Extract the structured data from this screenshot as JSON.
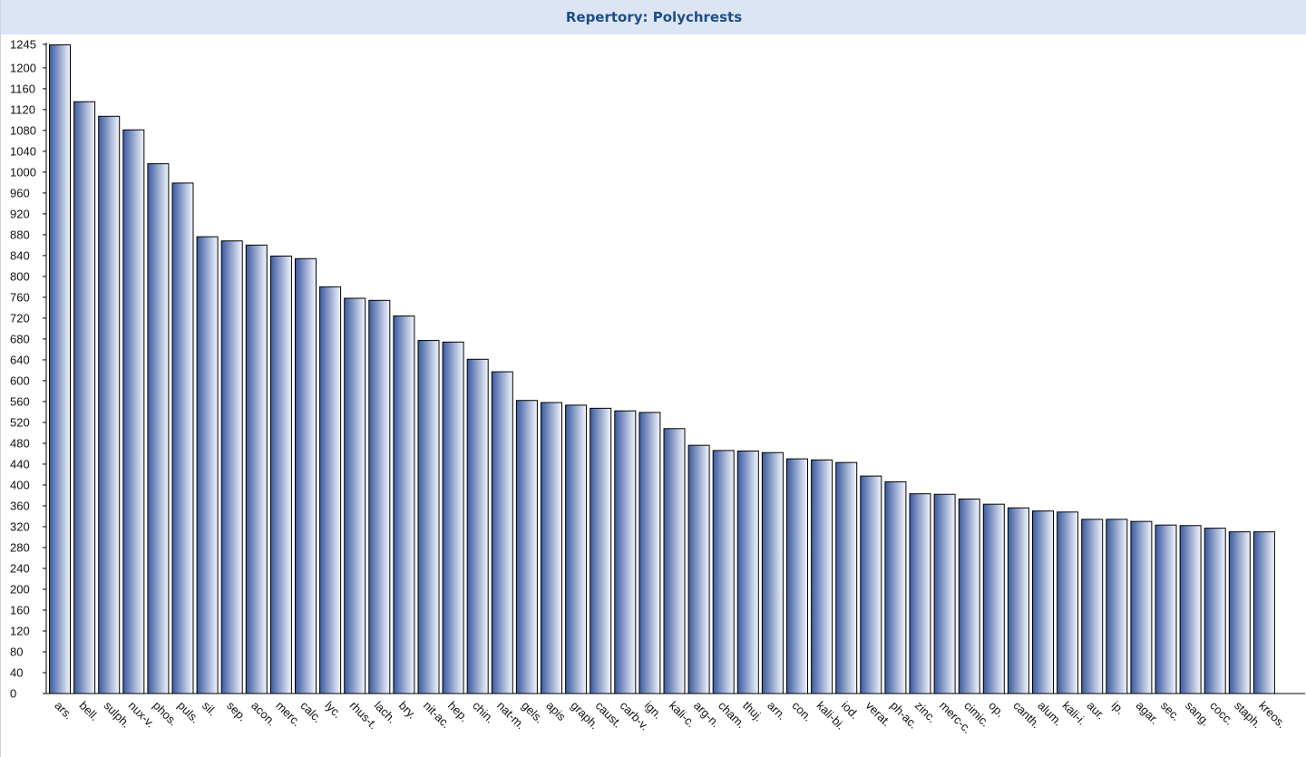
{
  "window": {
    "title": "Repertory: Polychrests"
  },
  "chart_data": {
    "type": "bar",
    "title": "Repertory: Polychrests",
    "xlabel": "",
    "ylabel": "",
    "ylim": [
      0,
      1245
    ],
    "y_ticks": [
      0,
      40,
      80,
      120,
      160,
      200,
      240,
      280,
      320,
      360,
      400,
      440,
      480,
      520,
      560,
      600,
      640,
      680,
      720,
      760,
      800,
      840,
      880,
      920,
      960,
      1000,
      1040,
      1080,
      1120,
      1160,
      1200,
      1245
    ],
    "grid": false,
    "legend": "none",
    "bar_color_dark": "#3a5aa0",
    "bar_color_light": "#f3f6fc",
    "categories": [
      "ars.",
      "bell.",
      "sulph.",
      "nux-v.",
      "phos.",
      "puls.",
      "sil.",
      "sep.",
      "acon.",
      "merc.",
      "calc.",
      "lyc.",
      "rhus-t.",
      "lach.",
      "bry.",
      "nit-ac.",
      "hep.",
      "chin.",
      "nat-m.",
      "gels.",
      "apis",
      "graph.",
      "caust.",
      "carb-v.",
      "ign.",
      "kali-c.",
      "arg-n.",
      "cham.",
      "thuj.",
      "arn.",
      "con.",
      "kali-bi.",
      "iod.",
      "verat.",
      "ph-ac.",
      "zinc.",
      "merc-c.",
      "cimic.",
      "op.",
      "canth.",
      "alum.",
      "kali-i.",
      "aur.",
      "ip.",
      "agar.",
      "sec.",
      "sang.",
      "cocc.",
      "staph.",
      "kreos."
    ],
    "values": [
      1245,
      1136,
      1108,
      1082,
      1017,
      980,
      877,
      869,
      861,
      840,
      835,
      781,
      759,
      755,
      725,
      678,
      675,
      642,
      618,
      563,
      559,
      554,
      548,
      543,
      540,
      509,
      477,
      467,
      466,
      463,
      451,
      449,
      444,
      418,
      407,
      384,
      383,
      374,
      364,
      357,
      351,
      349,
      335,
      335,
      331,
      324,
      323,
      318,
      311,
      311
    ]
  }
}
